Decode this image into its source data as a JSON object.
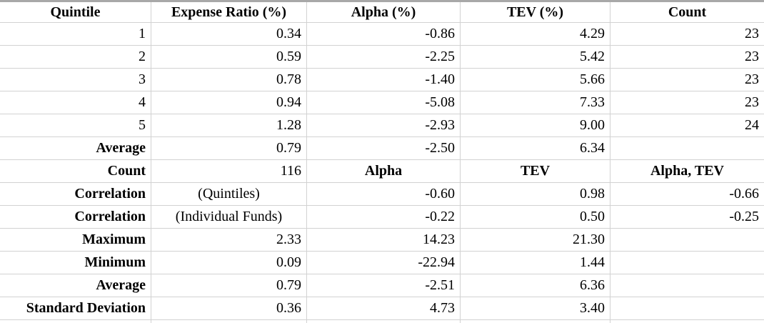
{
  "colors": {
    "background": "#ffffff",
    "text": "#000000",
    "gridline": "#d2d2d2",
    "top_border": "#a8a8a8"
  },
  "table": {
    "header": {
      "cells": [
        {
          "text": "Quintile",
          "align": "center",
          "bold": true
        },
        {
          "text": "Expense Ratio (%)",
          "align": "center",
          "bold": true
        },
        {
          "text": "Alpha (%)",
          "align": "center",
          "bold": true
        },
        {
          "text": "TEV (%)",
          "align": "center",
          "bold": true
        },
        {
          "text": "Count",
          "align": "center",
          "bold": true
        }
      ]
    },
    "rows": [
      {
        "cells": [
          {
            "text": "1",
            "align": "right"
          },
          {
            "text": "0.34",
            "align": "right"
          },
          {
            "text": "-0.86",
            "align": "right"
          },
          {
            "text": "4.29",
            "align": "right"
          },
          {
            "text": "23",
            "align": "right"
          }
        ]
      },
      {
        "cells": [
          {
            "text": "2",
            "align": "right"
          },
          {
            "text": "0.59",
            "align": "right"
          },
          {
            "text": "-2.25",
            "align": "right"
          },
          {
            "text": "5.42",
            "align": "right"
          },
          {
            "text": "23",
            "align": "right"
          }
        ]
      },
      {
        "cells": [
          {
            "text": "3",
            "align": "right"
          },
          {
            "text": "0.78",
            "align": "right"
          },
          {
            "text": "-1.40",
            "align": "right"
          },
          {
            "text": "5.66",
            "align": "right"
          },
          {
            "text": "23",
            "align": "right"
          }
        ]
      },
      {
        "cells": [
          {
            "text": "4",
            "align": "right"
          },
          {
            "text": "0.94",
            "align": "right"
          },
          {
            "text": "-5.08",
            "align": "right"
          },
          {
            "text": "7.33",
            "align": "right"
          },
          {
            "text": "23",
            "align": "right"
          }
        ]
      },
      {
        "cells": [
          {
            "text": "5",
            "align": "right"
          },
          {
            "text": "1.28",
            "align": "right"
          },
          {
            "text": "-2.93",
            "align": "right"
          },
          {
            "text": "9.00",
            "align": "right"
          },
          {
            "text": "24",
            "align": "right"
          }
        ]
      },
      {
        "cells": [
          {
            "text": "Average",
            "align": "right",
            "bold": true
          },
          {
            "text": "0.79",
            "align": "right"
          },
          {
            "text": "-2.50",
            "align": "right"
          },
          {
            "text": "6.34",
            "align": "right"
          },
          {
            "text": "",
            "align": "right"
          }
        ]
      },
      {
        "cells": [
          {
            "text": "Count",
            "align": "right",
            "bold": true
          },
          {
            "text": "116",
            "align": "right"
          },
          {
            "text": "Alpha",
            "align": "center",
            "bold": true
          },
          {
            "text": "TEV",
            "align": "center",
            "bold": true
          },
          {
            "text": "Alpha, TEV",
            "align": "center",
            "bold": true
          }
        ]
      },
      {
        "cells": [
          {
            "text": "Correlation",
            "align": "right",
            "bold": true
          },
          {
            "text": "(Quintiles)",
            "align": "center"
          },
          {
            "text": "-0.60",
            "align": "right"
          },
          {
            "text": "0.98",
            "align": "right"
          },
          {
            "text": "-0.66",
            "align": "right"
          }
        ]
      },
      {
        "cells": [
          {
            "text": "Correlation",
            "align": "right",
            "bold": true
          },
          {
            "text": "(Individual Funds)",
            "align": "center"
          },
          {
            "text": "-0.22",
            "align": "right"
          },
          {
            "text": "0.50",
            "align": "right"
          },
          {
            "text": "-0.25",
            "align": "right"
          }
        ]
      },
      {
        "cells": [
          {
            "text": "Maximum",
            "align": "right",
            "bold": true
          },
          {
            "text": "2.33",
            "align": "right"
          },
          {
            "text": "14.23",
            "align": "right"
          },
          {
            "text": "21.30",
            "align": "right"
          },
          {
            "text": "",
            "align": "right"
          }
        ]
      },
      {
        "cells": [
          {
            "text": "Minimum",
            "align": "right",
            "bold": true
          },
          {
            "text": "0.09",
            "align": "right"
          },
          {
            "text": "-22.94",
            "align": "right"
          },
          {
            "text": "1.44",
            "align": "right"
          },
          {
            "text": "",
            "align": "right"
          }
        ]
      },
      {
        "cells": [
          {
            "text": "Average",
            "align": "right",
            "bold": true
          },
          {
            "text": "0.79",
            "align": "right"
          },
          {
            "text": "-2.51",
            "align": "right"
          },
          {
            "text": "6.36",
            "align": "right"
          },
          {
            "text": "",
            "align": "right"
          }
        ]
      },
      {
        "cells": [
          {
            "text": "Standard Deviation",
            "align": "right",
            "bold": true
          },
          {
            "text": "0.36",
            "align": "right"
          },
          {
            "text": "4.73",
            "align": "right"
          },
          {
            "text": "3.40",
            "align": "right"
          },
          {
            "text": "",
            "align": "right"
          }
        ]
      }
    ]
  }
}
